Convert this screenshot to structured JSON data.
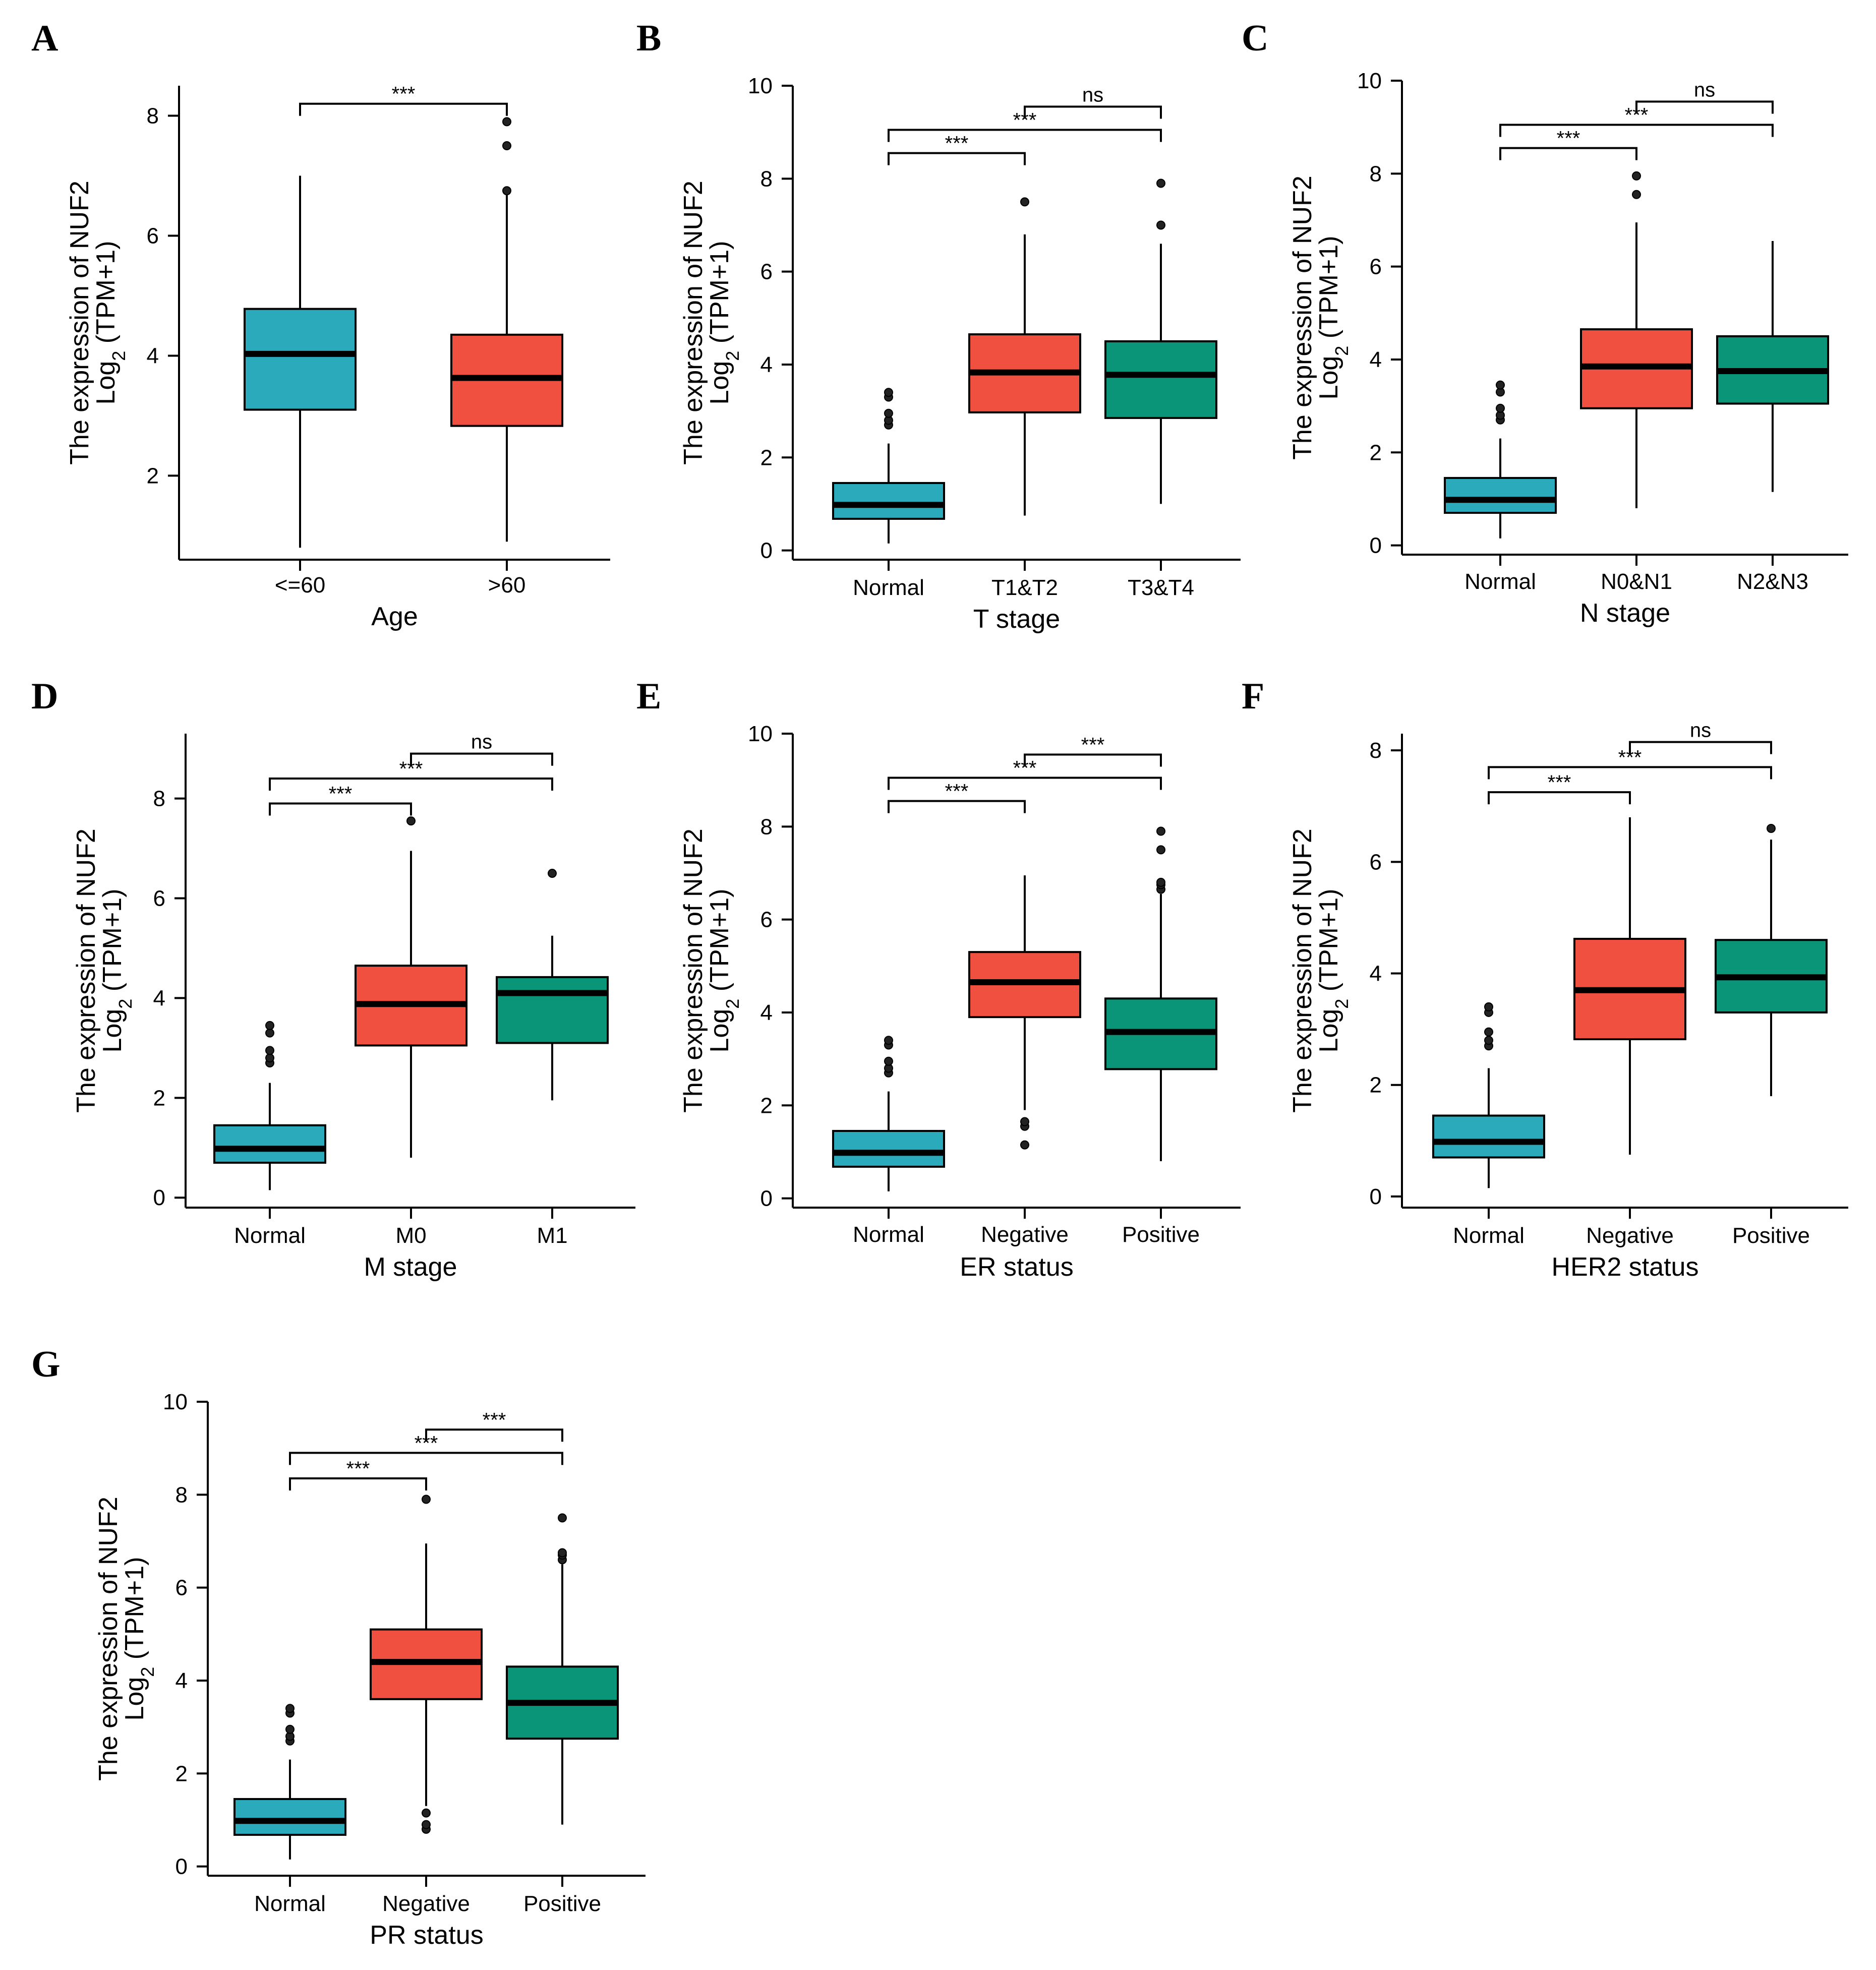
{
  "colors": {
    "normal": "#2AAABB",
    "red": "#F05040",
    "green": "#0A9478",
    "line": "#000000"
  },
  "ylabel": {
    "line1": "The expression of NUF2",
    "line2_prefix": "Log",
    "line2_sub": "2",
    "line2_suffix": " (TPM+1)"
  },
  "chart_data": [
    {
      "id": "A",
      "letter": "A",
      "type": "box",
      "xlabel": "Age",
      "ylim": [
        0.6,
        8.5
      ],
      "yticks": [
        2,
        4,
        6,
        8
      ],
      "categories": [
        "<=60",
        ">60"
      ],
      "boxes": [
        {
          "name": "<=60",
          "color": "normal",
          "min": 0.8,
          "q1": 3.1,
          "median": 4.03,
          "q3": 4.78,
          "max": 7.0,
          "outliers": []
        },
        {
          "name": ">60",
          "color": "red",
          "min": 0.9,
          "q1": 2.83,
          "median": 3.63,
          "q3": 4.35,
          "max": 6.7,
          "outliers": [
            6.75,
            7.5,
            7.9
          ]
        }
      ],
      "comparisons": [
        {
          "from": 0,
          "to": 1,
          "y": 8.2,
          "label": "***"
        }
      ]
    },
    {
      "id": "B",
      "letter": "B",
      "type": "box",
      "xlabel": "T stage",
      "ylim": [
        -0.2,
        10
      ],
      "yticks": [
        0,
        2,
        4,
        6,
        8,
        10
      ],
      "categories": [
        "Normal",
        "T1&T2",
        "T3&T4"
      ],
      "boxes": [
        {
          "name": "Normal",
          "color": "normal",
          "min": 0.15,
          "q1": 0.68,
          "median": 0.98,
          "q3": 1.45,
          "max": 2.3,
          "outliers": [
            2.7,
            2.8,
            2.95,
            3.3,
            3.4
          ]
        },
        {
          "name": "T1&T2",
          "color": "red",
          "min": 0.75,
          "q1": 2.97,
          "median": 3.83,
          "q3": 4.65,
          "max": 6.8,
          "outliers": [
            7.5
          ]
        },
        {
          "name": "T3&T4",
          "color": "green",
          "min": 1.0,
          "q1": 2.85,
          "median": 3.78,
          "q3": 4.5,
          "max": 6.6,
          "outliers": [
            7.0,
            7.9
          ]
        }
      ],
      "comparisons": [
        {
          "from": 0,
          "to": 1,
          "y": 8.55,
          "label": "***"
        },
        {
          "from": 0,
          "to": 2,
          "y": 9.05,
          "label": "***"
        },
        {
          "from": 1,
          "to": 2,
          "y": 9.55,
          "label": "ns"
        }
      ]
    },
    {
      "id": "C",
      "letter": "C",
      "type": "box",
      "xlabel": "N stage",
      "ylim": [
        -0.2,
        10
      ],
      "yticks": [
        0,
        2,
        4,
        6,
        8,
        10
      ],
      "categories": [
        "Normal",
        "N0&N1",
        "N2&N3"
      ],
      "boxes": [
        {
          "name": "Normal",
          "color": "normal",
          "min": 0.15,
          "q1": 0.7,
          "median": 0.98,
          "q3": 1.45,
          "max": 2.3,
          "outliers": [
            2.7,
            2.8,
            2.95,
            3.3,
            3.45
          ]
        },
        {
          "name": "N0&N1",
          "color": "red",
          "min": 0.8,
          "q1": 2.95,
          "median": 3.85,
          "q3": 4.65,
          "max": 6.95,
          "outliers": [
            7.55,
            7.95
          ]
        },
        {
          "name": "N2&N3",
          "color": "green",
          "min": 1.15,
          "q1": 3.05,
          "median": 3.75,
          "q3": 4.5,
          "max": 6.55,
          "outliers": []
        }
      ],
      "comparisons": [
        {
          "from": 0,
          "to": 1,
          "y": 8.55,
          "label": "***"
        },
        {
          "from": 0,
          "to": 2,
          "y": 9.05,
          "label": "***"
        },
        {
          "from": 1,
          "to": 2,
          "y": 9.55,
          "label": "ns"
        }
      ]
    },
    {
      "id": "D",
      "letter": "D",
      "type": "box",
      "xlabel": "M stage",
      "ylim": [
        -0.2,
        9.3
      ],
      "yticks": [
        0,
        2,
        4,
        6,
        8
      ],
      "categories": [
        "Normal",
        "M0",
        "M1"
      ],
      "boxes": [
        {
          "name": "Normal",
          "color": "normal",
          "min": 0.15,
          "q1": 0.7,
          "median": 0.98,
          "q3": 1.45,
          "max": 2.3,
          "outliers": [
            2.7,
            2.8,
            2.95,
            3.3,
            3.45
          ]
        },
        {
          "name": "M0",
          "color": "red",
          "min": 0.8,
          "q1": 3.05,
          "median": 3.88,
          "q3": 4.65,
          "max": 6.95,
          "outliers": [
            7.55
          ]
        },
        {
          "name": "M1",
          "color": "green",
          "min": 1.95,
          "q1": 3.1,
          "median": 4.1,
          "q3": 4.42,
          "max": 5.25,
          "outliers": [
            6.5
          ]
        }
      ],
      "comparisons": [
        {
          "from": 0,
          "to": 1,
          "y": 7.9,
          "label": "***"
        },
        {
          "from": 0,
          "to": 2,
          "y": 8.4,
          "label": "***"
        },
        {
          "from": 1,
          "to": 2,
          "y": 8.9,
          "label": "ns"
        }
      ]
    },
    {
      "id": "E",
      "letter": "E",
      "type": "box",
      "xlabel": "ER status",
      "ylim": [
        -0.2,
        10
      ],
      "yticks": [
        0,
        2,
        4,
        6,
        8,
        10
      ],
      "categories": [
        "Normal",
        "Negative",
        "Positive"
      ],
      "boxes": [
        {
          "name": "Normal",
          "color": "normal",
          "min": 0.15,
          "q1": 0.68,
          "median": 0.98,
          "q3": 1.45,
          "max": 2.3,
          "outliers": [
            2.7,
            2.8,
            2.95,
            3.3,
            3.4
          ]
        },
        {
          "name": "Negative",
          "color": "red",
          "min": 1.9,
          "q1": 3.9,
          "median": 4.65,
          "q3": 5.3,
          "max": 6.95,
          "outliers": [
            1.15,
            1.55,
            1.65
          ]
        },
        {
          "name": "Positive",
          "color": "green",
          "min": 0.8,
          "q1": 2.78,
          "median": 3.58,
          "q3": 4.3,
          "max": 6.55,
          "outliers": [
            6.65,
            6.75,
            6.8,
            7.5,
            7.9
          ]
        }
      ],
      "comparisons": [
        {
          "from": 0,
          "to": 1,
          "y": 8.55,
          "label": "***"
        },
        {
          "from": 0,
          "to": 2,
          "y": 9.05,
          "label": "***"
        },
        {
          "from": 1,
          "to": 2,
          "y": 9.55,
          "label": "***"
        }
      ]
    },
    {
      "id": "F",
      "letter": "F",
      "type": "box",
      "xlabel": "HER2 status",
      "ylim": [
        -0.2,
        8.3
      ],
      "yticks": [
        0,
        2,
        4,
        6,
        8
      ],
      "categories": [
        "Normal",
        "Negative",
        "Positive"
      ],
      "boxes": [
        {
          "name": "Normal",
          "color": "normal",
          "min": 0.15,
          "q1": 0.7,
          "median": 0.98,
          "q3": 1.45,
          "max": 2.3,
          "outliers": [
            2.7,
            2.8,
            2.95,
            3.3,
            3.4
          ]
        },
        {
          "name": "Negative",
          "color": "red",
          "min": 0.75,
          "q1": 2.82,
          "median": 3.7,
          "q3": 4.62,
          "max": 6.8,
          "outliers": []
        },
        {
          "name": "Positive",
          "color": "green",
          "min": 1.8,
          "q1": 3.3,
          "median": 3.93,
          "q3": 4.6,
          "max": 6.4,
          "outliers": [
            6.6
          ]
        }
      ],
      "comparisons": [
        {
          "from": 0,
          "to": 1,
          "y": 7.25,
          "label": "***"
        },
        {
          "from": 0,
          "to": 2,
          "y": 7.7,
          "label": "***"
        },
        {
          "from": 1,
          "to": 2,
          "y": 8.15,
          "label": "ns"
        }
      ]
    },
    {
      "id": "G",
      "letter": "G",
      "type": "box",
      "xlabel": "PR status",
      "ylim": [
        -0.2,
        10
      ],
      "yticks": [
        0,
        2,
        4,
        6,
        8,
        10
      ],
      "categories": [
        "Normal",
        "Negative",
        "Positive"
      ],
      "boxes": [
        {
          "name": "Normal",
          "color": "normal",
          "min": 0.15,
          "q1": 0.68,
          "median": 0.98,
          "q3": 1.45,
          "max": 2.3,
          "outliers": [
            2.7,
            2.8,
            2.95,
            3.3,
            3.4
          ]
        },
        {
          "name": "Negative",
          "color": "red",
          "min": 1.3,
          "q1": 3.6,
          "median": 4.4,
          "q3": 5.1,
          "max": 6.95,
          "outliers": [
            0.8,
            0.9,
            1.15,
            7.9
          ]
        },
        {
          "name": "Positive",
          "color": "green",
          "min": 0.9,
          "q1": 2.75,
          "median": 3.52,
          "q3": 4.3,
          "max": 6.5,
          "outliers": [
            6.6,
            6.7,
            6.75,
            7.5
          ]
        }
      ],
      "comparisons": [
        {
          "from": 0,
          "to": 1,
          "y": 8.35,
          "label": "***"
        },
        {
          "from": 0,
          "to": 2,
          "y": 8.9,
          "label": "***"
        },
        {
          "from": 1,
          "to": 2,
          "y": 9.4,
          "label": "***"
        }
      ]
    }
  ]
}
